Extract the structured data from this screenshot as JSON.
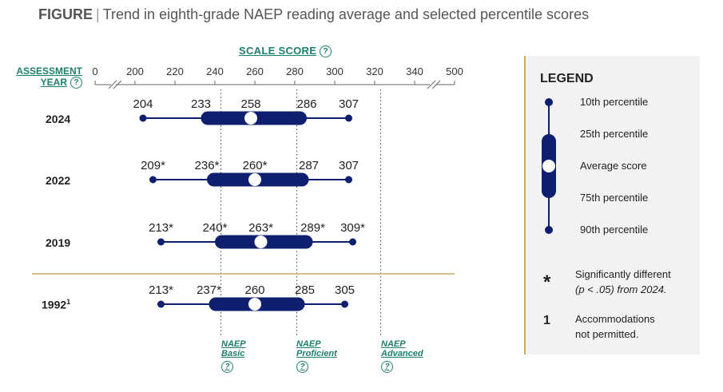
{
  "figure_label": "FIGURE",
  "title": "Trend in eighth-grade NAEP reading average and selected percentile scores",
  "scale_header": "SCALE SCORE",
  "year_header_line1": "ASSESSMENT",
  "year_header_line2": "YEAR",
  "help_glyph": "?",
  "colors": {
    "accent": "#0d1f6e",
    "link": "#1d7f6e",
    "divider": "#c9a962",
    "legend_bg": "#f2f2f2"
  },
  "chart_data": {
    "type": "range",
    "xlim": [
      0,
      500
    ],
    "ticks": [
      0,
      200,
      220,
      240,
      260,
      280,
      300,
      320,
      340,
      500
    ],
    "tick_labels": [
      "0",
      "200",
      "220",
      "240",
      "260",
      "280",
      "300",
      "320",
      "340",
      "500"
    ],
    "rows": [
      {
        "year": "2024",
        "footnote": "",
        "p10": 204,
        "p25": 233,
        "avg": 258,
        "p75": 286,
        "p90": 307,
        "labels": [
          "204",
          "233",
          "258",
          "286",
          "307"
        ]
      },
      {
        "year": "2022",
        "footnote": "",
        "p10": 209,
        "p25": 236,
        "avg": 260,
        "p75": 287,
        "p90": 307,
        "labels": [
          "209*",
          "236*",
          "260*",
          "287",
          "307"
        ]
      },
      {
        "year": "2019",
        "footnote": "",
        "p10": 213,
        "p25": 240,
        "avg": 263,
        "p75": 289,
        "p90": 309,
        "labels": [
          "213*",
          "240*",
          "263*",
          "289*",
          "309*"
        ]
      },
      {
        "year": "1992",
        "footnote": "1",
        "p10": 213,
        "p25": 237,
        "avg": 260,
        "p75": 285,
        "p90": 305,
        "labels": [
          "213*",
          "237*",
          "260",
          "285",
          "305"
        ]
      }
    ],
    "achievement_levels": [
      {
        "line1": "NAEP",
        "line2": "Basic",
        "cutpoint": 243
      },
      {
        "line1": "NAEP",
        "line2": "Proficient",
        "cutpoint": 281
      },
      {
        "line1": "NAEP",
        "line2": "Advanced",
        "cutpoint": 323
      }
    ]
  },
  "legend": {
    "title": "LEGEND",
    "items": [
      "10th percentile",
      "25th percentile",
      "Average score",
      "75th percentile",
      "90th percentile"
    ],
    "asterisk_symbol": "*",
    "asterisk_note_line1": "Significantly different",
    "asterisk_note_line2": "(p < .05) from 2024.",
    "footnote_symbol": "1",
    "footnote_note_line1": "Accommodations",
    "footnote_note_line2": "not permitted."
  }
}
